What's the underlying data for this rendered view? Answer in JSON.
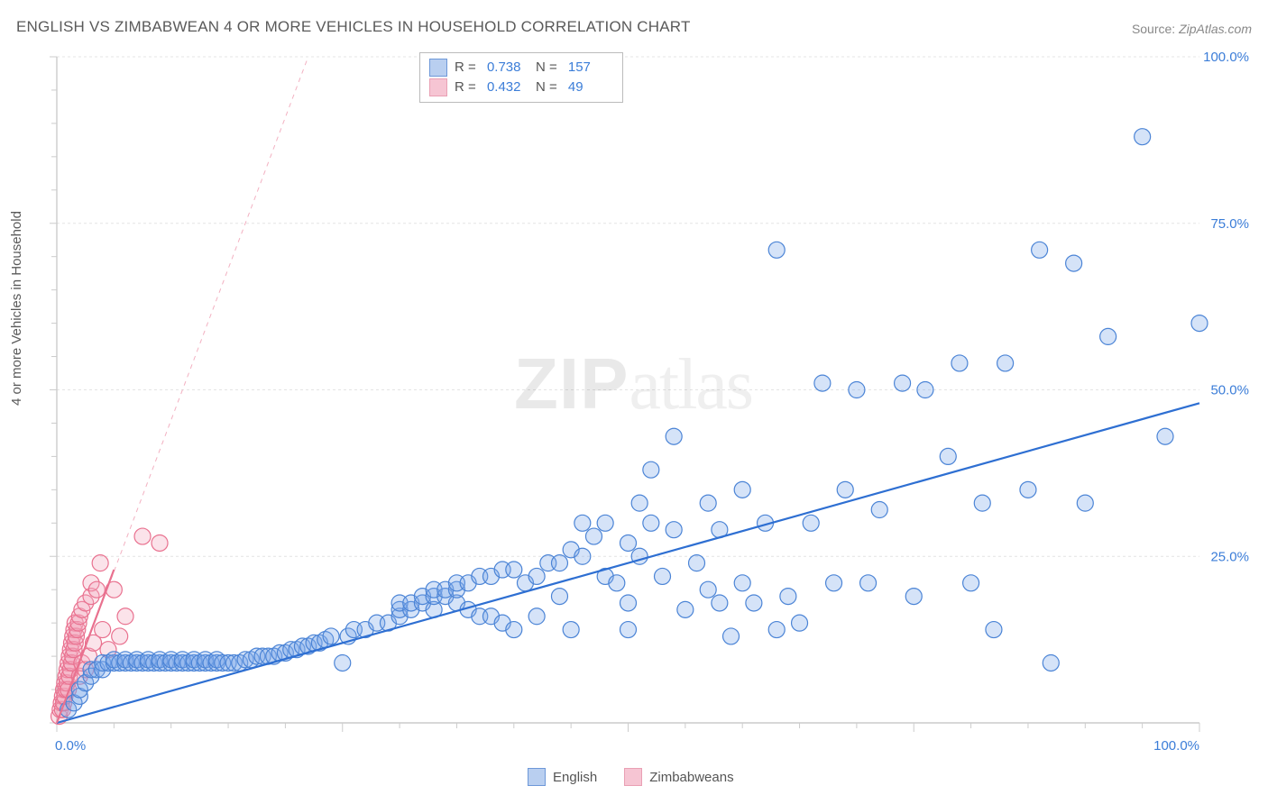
{
  "title": "ENGLISH VS ZIMBABWEAN 4 OR MORE VEHICLES IN HOUSEHOLD CORRELATION CHART",
  "source_label": "Source:",
  "source_value": "ZipAtlas.com",
  "ylabel": "4 or more Vehicles in Household",
  "watermark_a": "ZIP",
  "watermark_b": "atlas",
  "chart": {
    "type": "scatter",
    "background_color": "#ffffff",
    "grid_color": "#e4e4e4",
    "axis_line_color": "#cccccc",
    "tick_color": "#cccccc",
    "label_color": "#3b7dd8",
    "label_fontsize": 15,
    "xlim": [
      0,
      100
    ],
    "ylim": [
      0,
      100
    ],
    "x_ticks": [
      0,
      25,
      50,
      75,
      100
    ],
    "y_ticks": [
      0,
      25,
      50,
      75,
      100
    ],
    "x_tick_labels": [
      "0.0%",
      "",
      "",
      "",
      "100.0%"
    ],
    "y_tick_labels": [
      "",
      "25.0%",
      "50.0%",
      "75.0%",
      "100.0%"
    ],
    "x_minor_step": 5,
    "y_minor_step": 5,
    "marker_radius": 9,
    "marker_stroke_width": 1.2,
    "marker_fill_opacity": 0.32,
    "trend_line_width": 2.2,
    "series": [
      {
        "name": "English",
        "fill": "#7ba8e8",
        "stroke": "#4b84d6",
        "trend_color": "#2e6fd2",
        "trend": {
          "x1": 0,
          "y1": 0,
          "x2": 100,
          "y2": 48
        },
        "R": "0.738",
        "N": "157",
        "points": [
          [
            1,
            2
          ],
          [
            1.5,
            3
          ],
          [
            2,
            4
          ],
          [
            2,
            5
          ],
          [
            2.5,
            6
          ],
          [
            3,
            7
          ],
          [
            3,
            8
          ],
          [
            3.5,
            8
          ],
          [
            4,
            8
          ],
          [
            4,
            9
          ],
          [
            4.5,
            9
          ],
          [
            5,
            9
          ],
          [
            5,
            9.5
          ],
          [
            5.5,
            9
          ],
          [
            6,
            9
          ],
          [
            6,
            9.5
          ],
          [
            6.5,
            9
          ],
          [
            7,
            9
          ],
          [
            7,
            9.5
          ],
          [
            7.5,
            9
          ],
          [
            8,
            9
          ],
          [
            8,
            9.5
          ],
          [
            8.5,
            9
          ],
          [
            9,
            9
          ],
          [
            9,
            9.5
          ],
          [
            9.5,
            9
          ],
          [
            10,
            9
          ],
          [
            10,
            9.5
          ],
          [
            10.5,
            9
          ],
          [
            11,
            9
          ],
          [
            11,
            9.5
          ],
          [
            11.5,
            9
          ],
          [
            12,
            9
          ],
          [
            12,
            9.5
          ],
          [
            12.5,
            9
          ],
          [
            13,
            9
          ],
          [
            13,
            9.5
          ],
          [
            13.5,
            9
          ],
          [
            14,
            9
          ],
          [
            14,
            9.5
          ],
          [
            14.5,
            9
          ],
          [
            15,
            9
          ],
          [
            15.5,
            9
          ],
          [
            16,
            9
          ],
          [
            16.5,
            9.5
          ],
          [
            17,
            9.5
          ],
          [
            17.5,
            10
          ],
          [
            18,
            10
          ],
          [
            18.5,
            10
          ],
          [
            19,
            10
          ],
          [
            19.5,
            10.5
          ],
          [
            20,
            10.5
          ],
          [
            20.5,
            11
          ],
          [
            21,
            11
          ],
          [
            21.5,
            11.5
          ],
          [
            22,
            11.5
          ],
          [
            22.5,
            12
          ],
          [
            23,
            12
          ],
          [
            23.5,
            12.5
          ],
          [
            24,
            13
          ],
          [
            25,
            9
          ],
          [
            25.5,
            13
          ],
          [
            26,
            14
          ],
          [
            27,
            14
          ],
          [
            28,
            15
          ],
          [
            29,
            15
          ],
          [
            30,
            16
          ],
          [
            30,
            17
          ],
          [
            30,
            18
          ],
          [
            31,
            17
          ],
          [
            31,
            18
          ],
          [
            32,
            18
          ],
          [
            32,
            19
          ],
          [
            33,
            17
          ],
          [
            33,
            19
          ],
          [
            33,
            20
          ],
          [
            34,
            19
          ],
          [
            34,
            20
          ],
          [
            35,
            18
          ],
          [
            35,
            20
          ],
          [
            35,
            21
          ],
          [
            36,
            17
          ],
          [
            36,
            21
          ],
          [
            37,
            16
          ],
          [
            37,
            22
          ],
          [
            38,
            16
          ],
          [
            38,
            22
          ],
          [
            39,
            15
          ],
          [
            39,
            23
          ],
          [
            40,
            14
          ],
          [
            40,
            23
          ],
          [
            41,
            21
          ],
          [
            42,
            16
          ],
          [
            42,
            22
          ],
          [
            43,
            24
          ],
          [
            44,
            19
          ],
          [
            44,
            24
          ],
          [
            45,
            14
          ],
          [
            45,
            26
          ],
          [
            46,
            25
          ],
          [
            46,
            30
          ],
          [
            47,
            28
          ],
          [
            48,
            22
          ],
          [
            48,
            30
          ],
          [
            49,
            21
          ],
          [
            50,
            18
          ],
          [
            50,
            27
          ],
          [
            50,
            14
          ],
          [
            51,
            25
          ],
          [
            51,
            33
          ],
          [
            52,
            30
          ],
          [
            52,
            38
          ],
          [
            53,
            22
          ],
          [
            54,
            29
          ],
          [
            54,
            43
          ],
          [
            55,
            17
          ],
          [
            56,
            24
          ],
          [
            57,
            20
          ],
          [
            57,
            33
          ],
          [
            58,
            18
          ],
          [
            58,
            29
          ],
          [
            59,
            13
          ],
          [
            60,
            21
          ],
          [
            60,
            35
          ],
          [
            61,
            18
          ],
          [
            62,
            30
          ],
          [
            63,
            14
          ],
          [
            63,
            71
          ],
          [
            64,
            19
          ],
          [
            65,
            15
          ],
          [
            66,
            30
          ],
          [
            67,
            51
          ],
          [
            68,
            21
          ],
          [
            69,
            35
          ],
          [
            70,
            50
          ],
          [
            71,
            21
          ],
          [
            72,
            32
          ],
          [
            74,
            51
          ],
          [
            75,
            19
          ],
          [
            76,
            50
          ],
          [
            78,
            40
          ],
          [
            79,
            54
          ],
          [
            80,
            21
          ],
          [
            81,
            33
          ],
          [
            82,
            14
          ],
          [
            83,
            54
          ],
          [
            85,
            35
          ],
          [
            86,
            71
          ],
          [
            87,
            9
          ],
          [
            89,
            69
          ],
          [
            90,
            33
          ],
          [
            92,
            58
          ],
          [
            95,
            88
          ],
          [
            97,
            43
          ],
          [
            100,
            60
          ]
        ]
      },
      {
        "name": "Zimbabweans",
        "fill": "#f4a9bd",
        "stroke": "#e9718f",
        "trend_color": "#e9718f",
        "trend": {
          "x1": 0,
          "y1": 0,
          "x2": 5,
          "y2": 23
        },
        "dashed_trend": {
          "x1": 0,
          "y1": 0,
          "x2": 22,
          "y2": 100
        },
        "R": "0.432",
        "N": "49",
        "points": [
          [
            0.2,
            1
          ],
          [
            0.3,
            2
          ],
          [
            0.4,
            3
          ],
          [
            0.5,
            2
          ],
          [
            0.5,
            4
          ],
          [
            0.6,
            3
          ],
          [
            0.6,
            5
          ],
          [
            0.7,
            4
          ],
          [
            0.7,
            6
          ],
          [
            0.8,
            5
          ],
          [
            0.8,
            7
          ],
          [
            0.9,
            6
          ],
          [
            0.9,
            8
          ],
          [
            1.0,
            5
          ],
          [
            1.0,
            9
          ],
          [
            1.1,
            7
          ],
          [
            1.1,
            10
          ],
          [
            1.2,
            8
          ],
          [
            1.2,
            11
          ],
          [
            1.3,
            9
          ],
          [
            1.3,
            12
          ],
          [
            1.4,
            10
          ],
          [
            1.4,
            13
          ],
          [
            1.5,
            11
          ],
          [
            1.5,
            14
          ],
          [
            1.6,
            12
          ],
          [
            1.6,
            15
          ],
          [
            1.7,
            13
          ],
          [
            1.8,
            14
          ],
          [
            1.9,
            15
          ],
          [
            2.0,
            16
          ],
          [
            2.0,
            7
          ],
          [
            2.2,
            17
          ],
          [
            2.2,
            9
          ],
          [
            2.5,
            8
          ],
          [
            2.5,
            18
          ],
          [
            2.8,
            10
          ],
          [
            3.0,
            19
          ],
          [
            3.0,
            21
          ],
          [
            3.2,
            12
          ],
          [
            3.5,
            20
          ],
          [
            3.8,
            24
          ],
          [
            4.0,
            14
          ],
          [
            4.5,
            11
          ],
          [
            5.0,
            20
          ],
          [
            5.5,
            13
          ],
          [
            6.0,
            16
          ],
          [
            7.5,
            28
          ],
          [
            9.0,
            27
          ]
        ]
      }
    ],
    "legend_top": {
      "border_color": "#bbbbbb",
      "rows": [
        {
          "swatch_fill": "#b9cff0",
          "swatch_border": "#6d98d8",
          "r_prefix": "R = ",
          "n_prefix": "N = "
        },
        {
          "swatch_fill": "#f6c5d3",
          "swatch_border": "#e9a0b4",
          "r_prefix": "R = ",
          "n_prefix": "N = "
        }
      ]
    },
    "legend_bottom": [
      {
        "label": "English",
        "swatch_fill": "#b9cff0",
        "swatch_border": "#6d98d8"
      },
      {
        "label": "Zimbabweans",
        "swatch_fill": "#f6c5d3",
        "swatch_border": "#e9a0b4"
      }
    ]
  }
}
